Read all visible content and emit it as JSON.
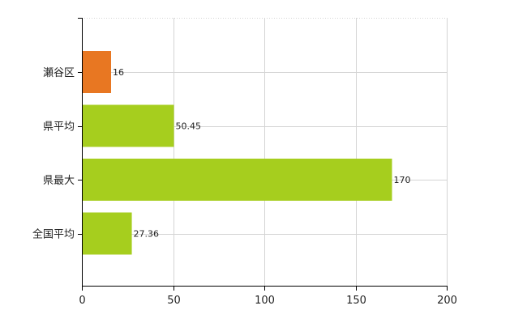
{
  "chart_data": {
    "type": "bar",
    "orientation": "horizontal",
    "categories": [
      "瀬谷区",
      "県平均",
      "県最大",
      "全国平均"
    ],
    "values": [
      16,
      50.45,
      170,
      27.36
    ],
    "value_labels": [
      "16",
      "50.45",
      "170",
      "27.36"
    ],
    "bar_colors": [
      "#E87722",
      "#A6CE1E",
      "#A6CE1E",
      "#A6CE1E"
    ],
    "xlim": [
      0,
      200
    ],
    "xticks": [
      0,
      50,
      100,
      150,
      200
    ],
    "xtick_labels": [
      "0",
      "50",
      "100",
      "150",
      "200"
    ],
    "grid": true,
    "legend": "none"
  }
}
